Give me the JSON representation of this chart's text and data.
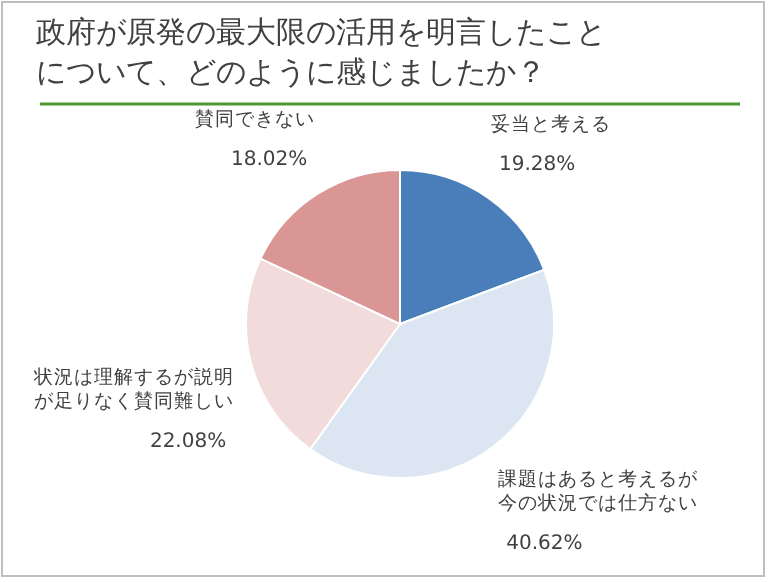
{
  "chart_data": {
    "type": "pie",
    "title": "政府が原発の最大限の活用を明言したことについて、どのように感じましたか？",
    "categories": [
      "妥当と考える",
      "課題はあると考えるが今の状況では仕方ない",
      "状況は理解するが説明が足りなく賛同難しい",
      "賛同できない"
    ],
    "values": [
      19.28,
      40.62,
      22.08,
      18.02
    ],
    "value_labels": [
      "19.28%",
      "40.62%",
      "22.08%",
      "18.02%"
    ],
    "colors": [
      "#4a7ebb",
      "#dce6f2",
      "#f2dcdb",
      "#d99694"
    ]
  }
}
